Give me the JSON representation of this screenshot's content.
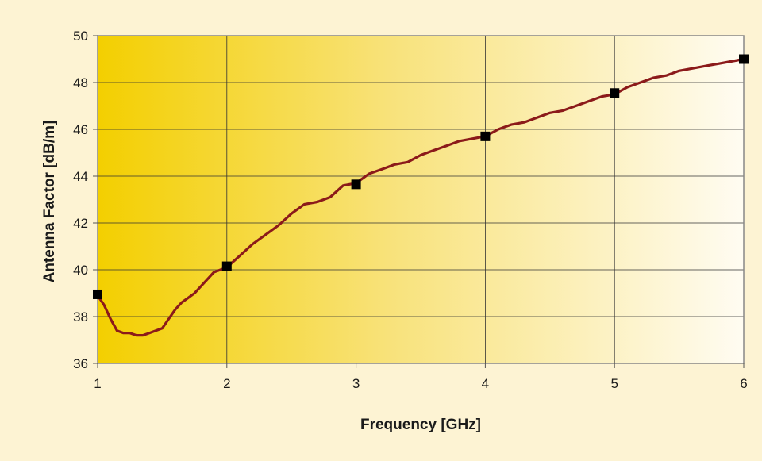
{
  "chart_data": {
    "type": "line",
    "title": "",
    "xlabel": "Frequency [GHz]",
    "ylabel": "Antenna Factor [dB/m]",
    "xlim": [
      1,
      6
    ],
    "ylim": [
      36,
      50
    ],
    "x_ticks": [
      "1",
      "2",
      "3",
      "4",
      "5",
      "6"
    ],
    "y_ticks": [
      "36",
      "38",
      "40",
      "42",
      "44",
      "46",
      "48",
      "50"
    ],
    "grid": true,
    "legend": "none",
    "series": [
      {
        "color": "#8b1a1a",
        "x": [
          1.0,
          1.05,
          1.1,
          1.15,
          1.2,
          1.25,
          1.3,
          1.35,
          1.4,
          1.45,
          1.5,
          1.55,
          1.6,
          1.65,
          1.7,
          1.75,
          1.8,
          1.85,
          1.9,
          1.95,
          2.0,
          2.1,
          2.2,
          2.3,
          2.4,
          2.5,
          2.6,
          2.7,
          2.8,
          2.9,
          3.0,
          3.1,
          3.2,
          3.3,
          3.4,
          3.5,
          3.6,
          3.7,
          3.8,
          3.9,
          4.0,
          4.1,
          4.2,
          4.3,
          4.4,
          4.5,
          4.6,
          4.7,
          4.8,
          4.9,
          5.0,
          5.1,
          5.2,
          5.3,
          5.4,
          5.5,
          5.6,
          5.7,
          5.8,
          5.9,
          6.0
        ],
        "y": [
          38.9,
          38.5,
          37.9,
          37.4,
          37.3,
          37.3,
          37.2,
          37.2,
          37.3,
          37.4,
          37.5,
          37.9,
          38.3,
          38.6,
          38.8,
          39.0,
          39.3,
          39.6,
          39.9,
          40.0,
          40.1,
          40.6,
          41.1,
          41.5,
          41.9,
          42.4,
          42.8,
          42.9,
          43.1,
          43.6,
          43.7,
          44.1,
          44.3,
          44.5,
          44.6,
          44.9,
          45.1,
          45.3,
          45.5,
          45.6,
          45.7,
          46.0,
          46.2,
          46.3,
          46.5,
          46.7,
          46.8,
          47.0,
          47.2,
          47.4,
          47.5,
          47.8,
          48.0,
          48.2,
          48.3,
          48.5,
          48.6,
          48.7,
          48.8,
          48.9,
          49.0
        ]
      }
    ],
    "markers": {
      "x": [
        1,
        2,
        3,
        4,
        5,
        6
      ],
      "y": [
        38.95,
        40.15,
        43.65,
        45.7,
        47.55,
        49.0
      ],
      "color": "#000000"
    }
  },
  "colors": {
    "page_background": "#fdf3d3",
    "plot_gradient_start": "#f3cf00",
    "plot_gradient_end": "#fffcf2",
    "grid": "#333333",
    "line": "#8b1a1a"
  }
}
